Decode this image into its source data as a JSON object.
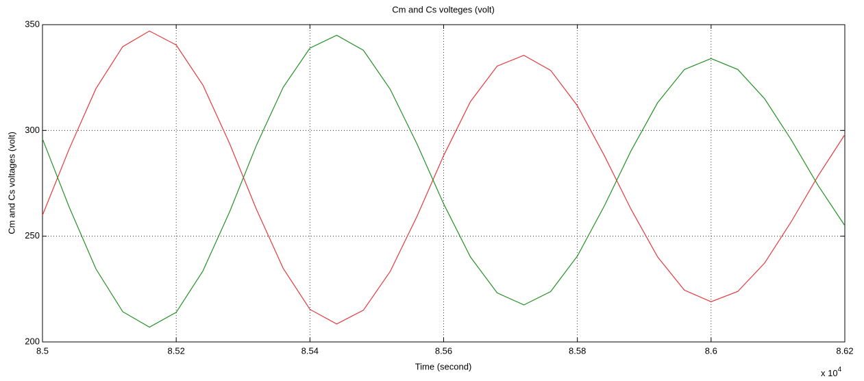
{
  "chart_data": {
    "type": "line",
    "title": "Cm and Cs volteges (volt)",
    "x_label": "Time (second)",
    "y_label": "Cm and Cs voltages (volt)",
    "x_multiplier": {
      "base": "x 10",
      "exponent": "4"
    },
    "x": [
      8.5,
      8.504,
      8.508,
      8.512,
      8.516,
      8.52,
      8.524,
      8.528,
      8.532,
      8.536,
      8.54,
      8.544,
      8.548,
      8.552,
      8.556,
      8.56,
      8.564,
      8.568,
      8.572,
      8.576,
      8.58,
      8.584,
      8.588,
      8.592,
      8.596,
      8.6,
      8.604,
      8.608,
      8.612,
      8.616,
      8.62
    ],
    "series": [
      {
        "color": "#e8363c",
        "values": [
          259.9,
          291.3,
          319.8,
          339.6,
          347,
          340.4,
          321.4,
          293.7,
          262.7,
          234.8,
          215.4,
          208.5,
          215.0,
          233.3,
          259.3,
          288.1,
          313.6,
          330.4,
          335.5,
          328.4,
          311.7,
          288.3,
          262.9,
          240.2,
          224.5,
          219,
          223.9,
          237.3,
          256.9,
          278.5,
          298
        ]
      },
      {
        "color": "#239023",
        "values": [
          296,
          263.7,
          234.5,
          214.3,
          207,
          214.0,
          233.6,
          261.6,
          293.0,
          320.4,
          338.9,
          345,
          337.9,
          319.5,
          293.7,
          265.3,
          240.2,
          223.2,
          217.5,
          223.8,
          240.6,
          264.1,
          290.2,
          313.1,
          328.8,
          334,
          328.8,
          315.0,
          295.5,
          274.0,
          255
        ]
      }
    ],
    "xlim": [
      8.5,
      8.62
    ],
    "xticks": [
      8.5,
      8.52,
      8.54,
      8.56,
      8.58,
      8.6,
      8.62
    ],
    "ylim": [
      200,
      350
    ],
    "yticks": [
      200,
      250,
      300,
      350
    ],
    "grid": true
  }
}
